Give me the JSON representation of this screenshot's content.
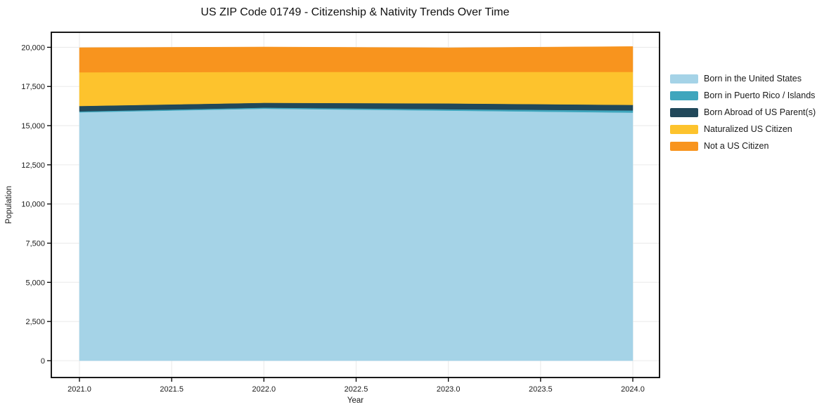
{
  "title": "US ZIP Code 01749 - Citizenship & Nativity Trends Over Time",
  "chart_data": {
    "type": "area",
    "stacked": true,
    "title": "US ZIP Code 01749 - Citizenship & Nativity Trends Over Time",
    "xlabel": "Year",
    "ylabel": "Population",
    "x": [
      2021,
      2022,
      2023,
      2024
    ],
    "series": [
      {
        "name": "Born in the United States",
        "color": "#a5d3e7",
        "values": [
          15850,
          16080,
          15960,
          15830
        ]
      },
      {
        "name": "Born in Puerto Rico / Islands",
        "color": "#3fa6bd",
        "values": [
          60,
          70,
          90,
          140
        ]
      },
      {
        "name": "Born Abroad of US Parent(s)",
        "color": "#21485a",
        "values": [
          345,
          310,
          370,
          355
        ]
      },
      {
        "name": "Naturalized US Citizen",
        "color": "#fdc32d",
        "values": [
          2150,
          1970,
          2010,
          2105
        ]
      },
      {
        "name": "Not a US Citizen",
        "color": "#f8941e",
        "values": [
          1570,
          1590,
          1540,
          1620
        ]
      }
    ],
    "x_ticks": [
      2021.0,
      2021.5,
      2022.0,
      2022.5,
      2023.0,
      2023.5,
      2024.0
    ],
    "y_ticks": [
      0,
      2500,
      5000,
      7500,
      10000,
      12500,
      15000,
      17500,
      20000
    ],
    "xlim": [
      2020.85,
      2024.15
    ],
    "ylim": [
      -1080,
      20960
    ],
    "grid": true,
    "legend_position": "right",
    "colors": {
      "grid": "#ebebeb",
      "axis": "#000000",
      "tick_label": "#1a1a1a"
    }
  }
}
